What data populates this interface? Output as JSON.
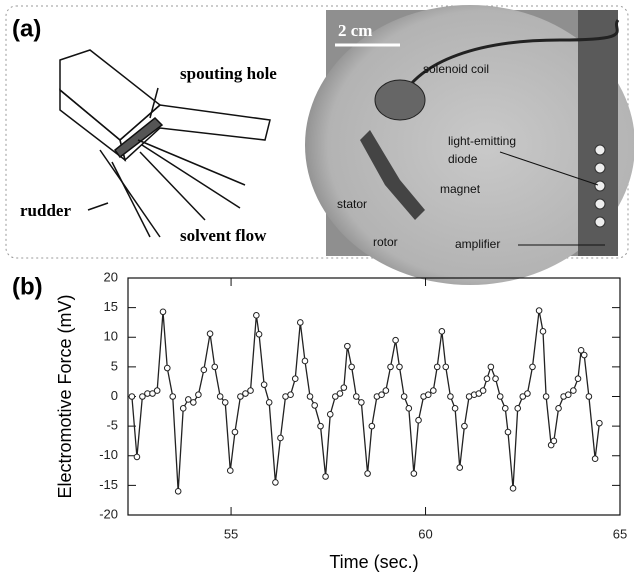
{
  "panel_a": {
    "label": "(a)",
    "diagram": {
      "spouting_hole": "spouting hole",
      "rudder": "rudder",
      "solvent_flow": "solvent flow"
    },
    "photo": {
      "scale": "2 cm",
      "solenoid_coil": "solenoid coil",
      "led_line1": "light-emitting",
      "led_line2": "diode",
      "stator": "stator",
      "magnet": "magnet",
      "rotor": "rotor",
      "amplifier": "amplifier"
    }
  },
  "panel_b_label": "(b)",
  "chart_data": {
    "type": "line",
    "xlabel": "Time (sec.)",
    "ylabel": "Electromotive Force (mV)",
    "color": "#222222",
    "x": [
      52.45,
      52.58,
      52.72,
      52.85,
      52.98,
      53.1,
      53.25,
      53.36,
      53.5,
      53.64,
      53.77,
      53.9,
      54.03,
      54.16,
      54.3,
      54.46,
      54.58,
      54.72,
      54.85,
      54.98,
      55.1,
      55.24,
      55.37,
      55.5,
      55.65,
      55.72,
      55.85,
      55.98,
      56.14,
      56.27,
      56.4,
      56.53,
      56.65,
      56.78,
      56.9,
      57.03,
      57.15,
      57.3,
      57.43,
      57.55,
      57.68,
      57.8,
      57.9,
      57.99,
      58.1,
      58.22,
      58.35,
      58.51,
      58.62,
      58.75,
      58.87,
      58.98,
      59.1,
      59.23,
      59.33,
      59.45,
      59.57,
      59.7,
      59.82,
      59.95,
      60.07,
      60.2,
      60.3,
      60.42,
      60.52,
      60.64,
      60.76,
      60.88,
      61.0,
      61.12,
      61.25,
      61.37,
      61.48,
      61.58,
      61.68,
      61.8,
      61.92,
      62.05,
      62.12,
      62.25,
      62.37,
      62.5,
      62.62,
      62.75,
      62.92,
      63.02,
      63.1,
      63.23,
      63.3,
      63.42,
      63.55,
      63.67,
      63.8,
      63.92,
      64.0,
      64.08,
      64.2,
      64.36,
      64.47
    ],
    "values": [
      0,
      -10.2,
      0,
      0.5,
      0.5,
      1,
      14.3,
      4.8,
      0,
      -16,
      -2,
      -0.5,
      -1,
      0.3,
      4.5,
      10.6,
      5,
      0,
      -1,
      -12.5,
      -6,
      0,
      0.5,
      1,
      13.7,
      10.5,
      2,
      -1,
      -14.5,
      -7,
      0,
      0.3,
      3,
      12.5,
      6,
      0,
      -1.5,
      -5,
      -13.5,
      -3,
      0,
      0.5,
      1.5,
      8.5,
      5,
      0,
      -1,
      -13,
      -5,
      0,
      0.3,
      1,
      5,
      9.5,
      5,
      0,
      -2,
      -13,
      -4,
      0,
      0.3,
      1,
      5,
      11,
      5,
      0,
      -2,
      -12,
      -5,
      0,
      0.3,
      0.5,
      1,
      3,
      5,
      3,
      0,
      -2,
      -6,
      -15.5,
      -2,
      0,
      0.5,
      5,
      14.5,
      11,
      0,
      -8.2,
      -7.5,
      -2,
      0,
      0.3,
      1,
      3,
      7.8,
      7,
      0,
      -10.5,
      -4.5
    ],
    "xlim": [
      52.35,
      65
    ],
    "ylim": [
      -20,
      20
    ],
    "xticks": [
      55,
      60,
      65
    ],
    "yticks": [
      -20,
      -15,
      -10,
      -5,
      0,
      5,
      10,
      15,
      20
    ]
  }
}
